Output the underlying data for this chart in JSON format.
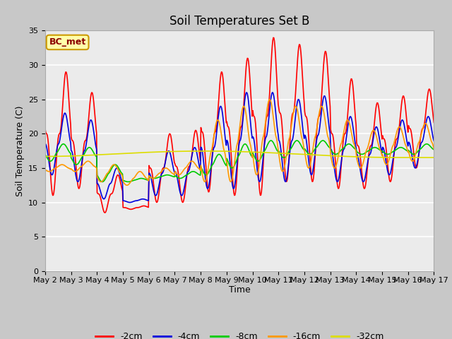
{
  "title": "Soil Temperatures Set B",
  "xlabel": "Time",
  "ylabel": "Soil Temperature (C)",
  "annotation": "BC_met",
  "ylim": [
    0,
    35
  ],
  "yticks": [
    0,
    5,
    10,
    15,
    20,
    25,
    30,
    35
  ],
  "series_labels": [
    "-2cm",
    "-4cm",
    "-8cm",
    "-16cm",
    "-32cm"
  ],
  "series_colors": [
    "#ff0000",
    "#0000dd",
    "#00cc00",
    "#ff9900",
    "#dddd00"
  ],
  "xtick_labels": [
    "May 2",
    "May 3",
    "May 4",
    "May 5",
    "May 6",
    "May 7",
    "May 8",
    "May 9",
    "May 10",
    "May 11",
    "May 12",
    "May 13",
    "May 14",
    "May 15",
    "May 16",
    "May 17"
  ],
  "plot_bg_color": "#ebebeb",
  "fig_bg_color": "#c8c8c8",
  "title_fontsize": 12,
  "axis_label_fontsize": 9,
  "tick_fontsize": 8,
  "n_days": 15,
  "pts_per_day": 48
}
